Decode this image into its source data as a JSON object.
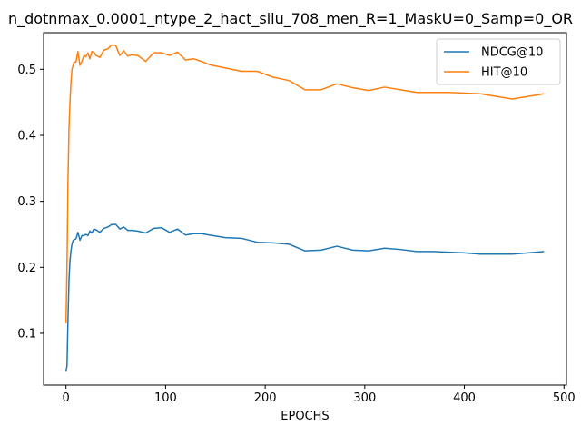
{
  "chart_data": {
    "type": "line",
    "title": "n_dotnmax_0.0001_ntype_2_hact_silu_708_men_R=1_MaskU=0_Samp=0_OR",
    "xlabel": "EPOCHS",
    "ylabel": "",
    "xlim": [
      -22.5,
      502.5
    ],
    "ylim": [
      0.0215,
      0.5555
    ],
    "xticks": [
      0,
      100,
      200,
      300,
      400,
      500
    ],
    "yticks": [
      0.1,
      0.2,
      0.3,
      0.4,
      0.5
    ],
    "grid": false,
    "legend": "top-right",
    "colors": {
      "NDCG@10": "#1f77b4",
      "HIT@10": "#ff7f0e"
    },
    "series": [
      {
        "name": "NDCG@10",
        "x": [
          0,
          1,
          2,
          3,
          4,
          5,
          6,
          7,
          8,
          10,
          12,
          14,
          16,
          18,
          20,
          22,
          24,
          26,
          28,
          30,
          34,
          38,
          42,
          46,
          50,
          54,
          58,
          62,
          66,
          72,
          80,
          88,
          96,
          104,
          112,
          120,
          128,
          136,
          144,
          160,
          176,
          192,
          208,
          224,
          240,
          256,
          272,
          288,
          304,
          320,
          336,
          352,
          368,
          384,
          400,
          416,
          432,
          448,
          464,
          480
        ],
        "y": [
          0.043,
          0.05,
          0.12,
          0.18,
          0.21,
          0.225,
          0.235,
          0.24,
          0.242,
          0.243,
          0.253,
          0.241,
          0.248,
          0.248,
          0.25,
          0.248,
          0.255,
          0.252,
          0.258,
          0.257,
          0.253,
          0.259,
          0.261,
          0.265,
          0.265,
          0.258,
          0.261,
          0.256,
          0.256,
          0.255,
          0.252,
          0.259,
          0.26,
          0.253,
          0.258,
          0.249,
          0.251,
          0.251,
          0.249,
          0.245,
          0.244,
          0.238,
          0.237,
          0.235,
          0.225,
          0.226,
          0.232,
          0.226,
          0.225,
          0.229,
          0.227,
          0.224,
          0.224,
          0.223,
          0.222,
          0.22,
          0.22,
          0.22,
          0.222,
          0.224
        ]
      },
      {
        "name": "HIT@10",
        "x": [
          0,
          1,
          2,
          3,
          4,
          5,
          6,
          7,
          8,
          10,
          12,
          14,
          16,
          18,
          20,
          22,
          24,
          26,
          28,
          30,
          34,
          38,
          42,
          46,
          50,
          54,
          58,
          62,
          66,
          72,
          80,
          88,
          96,
          104,
          112,
          120,
          128,
          136,
          144,
          160,
          176,
          192,
          208,
          224,
          240,
          256,
          272,
          288,
          304,
          320,
          336,
          352,
          368,
          384,
          400,
          416,
          432,
          448,
          464,
          480
        ],
        "y": [
          0.115,
          0.2,
          0.33,
          0.41,
          0.45,
          0.48,
          0.5,
          0.505,
          0.511,
          0.511,
          0.527,
          0.506,
          0.512,
          0.521,
          0.519,
          0.525,
          0.516,
          0.527,
          0.526,
          0.521,
          0.518,
          0.529,
          0.531,
          0.537,
          0.536,
          0.521,
          0.528,
          0.52,
          0.522,
          0.521,
          0.512,
          0.525,
          0.525,
          0.521,
          0.526,
          0.514,
          0.516,
          0.512,
          0.507,
          0.502,
          0.497,
          0.497,
          0.488,
          0.483,
          0.469,
          0.469,
          0.478,
          0.472,
          0.468,
          0.473,
          0.469,
          0.465,
          0.465,
          0.465,
          0.464,
          0.463,
          0.459,
          0.455,
          0.459,
          0.463
        ]
      }
    ]
  }
}
